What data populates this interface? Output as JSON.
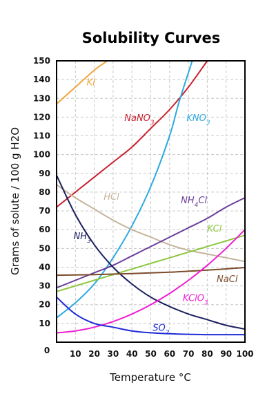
{
  "chart_data": {
    "type": "line",
    "title": "Solubility Curves",
    "xlabel": "Temperature °C",
    "ylabel": "Grams of solute / 100 g H2O",
    "xlim": [
      0,
      100
    ],
    "ylim": [
      0,
      150
    ],
    "xticks": [
      10,
      20,
      30,
      40,
      50,
      60,
      70,
      80,
      90,
      100
    ],
    "yticks": [
      10,
      20,
      30,
      40,
      50,
      60,
      70,
      80,
      90,
      100,
      110,
      120,
      130,
      140,
      150
    ],
    "origin_label": "0",
    "grid": true,
    "series": [
      {
        "name": "KI",
        "label_parts": [
          [
            "KI",
            false
          ]
        ],
        "color": "#f2a43a",
        "label_at": [
          16,
          137
        ],
        "x": [
          0,
          10,
          20,
          27
        ],
        "y": [
          127,
          136,
          145,
          150
        ]
      },
      {
        "name": "NaNO3",
        "label_parts": [
          [
            "NaNO",
            false
          ],
          [
            "3",
            true
          ]
        ],
        "color": "#c8202e",
        "label_at": [
          36,
          118
        ],
        "x": [
          0,
          10,
          20,
          30,
          40,
          50,
          60,
          70,
          80
        ],
        "y": [
          72,
          80,
          88,
          96,
          104,
          114,
          124,
          136,
          150
        ]
      },
      {
        "name": "KNO3",
        "label_parts": [
          [
            "KNO",
            false
          ],
          [
            "3",
            true
          ]
        ],
        "color": "#2ca9e0",
        "label_at": [
          69,
          118
        ],
        "x": [
          0,
          10,
          20,
          30,
          40,
          50,
          60,
          65,
          72
        ],
        "y": [
          13,
          21,
          31,
          45,
          62,
          83,
          110,
          128,
          150
        ]
      },
      {
        "name": "HCl",
        "label_parts": [
          [
            "HCl",
            false
          ]
        ],
        "color": "#c4b59c",
        "label_at": [
          25,
          76
        ],
        "x": [
          0,
          10,
          20,
          30,
          40,
          50,
          60,
          70,
          80,
          90,
          100
        ],
        "y": [
          84,
          77,
          71,
          65,
          60,
          56,
          52,
          49,
          47,
          45,
          43
        ]
      },
      {
        "name": "NH4Cl",
        "label_parts": [
          [
            "NH",
            false
          ],
          [
            "4",
            true
          ],
          [
            "Cl",
            false
          ]
        ],
        "color": "#6a3d9a",
        "label_at": [
          66,
          74
        ],
        "x": [
          0,
          10,
          20,
          30,
          40,
          50,
          60,
          70,
          80,
          90,
          100
        ],
        "y": [
          29,
          33,
          37,
          41,
          46,
          51,
          56,
          61,
          66,
          72,
          77
        ]
      },
      {
        "name": "KCl",
        "label_parts": [
          [
            "KCl",
            false
          ]
        ],
        "color": "#8dc63f",
        "label_at": [
          80,
          59
        ],
        "x": [
          0,
          10,
          20,
          30,
          40,
          50,
          60,
          70,
          80,
          90,
          100
        ],
        "y": [
          27,
          30,
          33,
          36,
          39,
          42,
          45,
          48,
          51,
          54,
          57
        ]
      },
      {
        "name": "NH3",
        "label_parts": [
          [
            "NH",
            false
          ],
          [
            "3",
            true
          ]
        ],
        "color": "#1b1f5e",
        "label_at": [
          9,
          55
        ],
        "x": [
          0,
          10,
          20,
          30,
          40,
          50,
          60,
          70,
          80,
          90,
          100
        ],
        "y": [
          89,
          68,
          52,
          40,
          31,
          24,
          19,
          15,
          12,
          9,
          7
        ]
      },
      {
        "name": "NaCl",
        "label_parts": [
          [
            "NaCl",
            false
          ]
        ],
        "color": "#7b4b2a",
        "label_at": [
          85,
          32
        ],
        "x": [
          0,
          20,
          40,
          60,
          80,
          100
        ],
        "y": [
          35.7,
          36,
          36.6,
          37.3,
          38.4,
          39.8
        ]
      },
      {
        "name": "KClO3",
        "label_parts": [
          [
            "KClO",
            false
          ],
          [
            "3",
            true
          ]
        ],
        "color": "#f01dd0",
        "label_at": [
          67,
          22
        ],
        "x": [
          0,
          10,
          20,
          30,
          40,
          50,
          60,
          70,
          80,
          90,
          100
        ],
        "y": [
          5,
          6,
          8,
          11,
          15,
          20,
          26,
          33,
          41,
          50,
          60
        ]
      },
      {
        "name": "SO2",
        "label_parts": [
          [
            "SO",
            false
          ],
          [
            "2",
            true
          ]
        ],
        "color": "#1e2bd8",
        "label_at": [
          51,
          6
        ],
        "x": [
          0,
          10,
          20,
          30,
          40,
          50,
          60,
          70,
          80,
          90,
          100
        ],
        "y": [
          24,
          15,
          10,
          8,
          6,
          5,
          4.5,
          4.2,
          4,
          4,
          4
        ]
      }
    ]
  }
}
